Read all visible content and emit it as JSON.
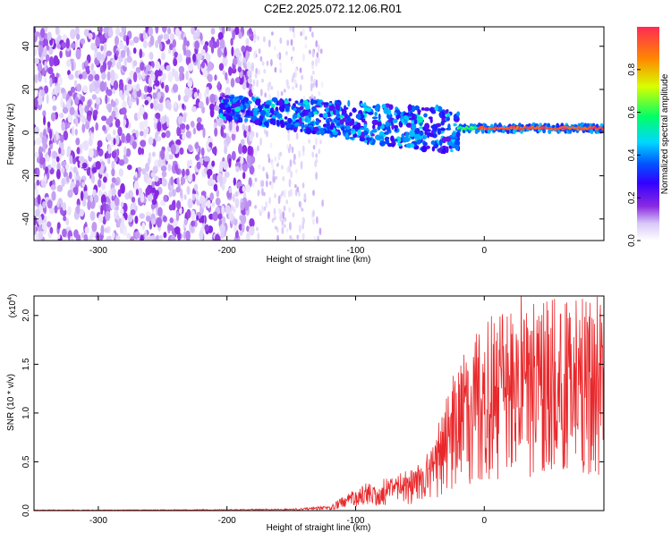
{
  "title": "C2E2.2025.072.12.06.R01",
  "colors": {
    "snr_line": "#e8282b",
    "background": "#ffffff",
    "colormap": [
      "#ffffff",
      "#d8c8f8",
      "#8a2be2",
      "#3300ff",
      "#0055ff",
      "#00d8ff",
      "#00ff66",
      "#d8ff00",
      "#ff8800",
      "#ff2a55"
    ]
  },
  "chart_data": [
    {
      "type": "heatmap",
      "title": "",
      "xlabel": "Height of straight line (km)",
      "ylabel": "Frequency (Hz)",
      "xlim": [
        -350,
        93
      ],
      "ylim": [
        -50,
        49
      ],
      "xticks": [
        -300,
        -200,
        -100,
        0
      ],
      "yticks": [
        -40,
        -20,
        0,
        20,
        40
      ],
      "colorbar": {
        "label": "Normalized spectral amplitude",
        "range": [
          0.0,
          1.0
        ],
        "ticks": [
          "0.0",
          "0.2",
          "0.4",
          "0.6",
          "0.8"
        ]
      },
      "regions": [
        {
          "x_range": [
            -350,
            -180
          ],
          "freq_range": [
            -50,
            49
          ],
          "amplitude": 0.1,
          "note": "dense violet noise"
        },
        {
          "x_range": [
            -180,
            -125
          ],
          "freq_range": [
            -50,
            49
          ],
          "amplitude": 0.05,
          "note": "sparse faint noise"
        },
        {
          "x_range": [
            -205,
            -20
          ],
          "freq_center": [
            12,
            0
          ],
          "amplitude": 0.35,
          "note": "blue-cyan band"
        },
        {
          "x_range": [
            -20,
            93
          ],
          "freq_center": [
            2,
            2
          ],
          "amplitude": 0.95,
          "note": "red-green narrow band"
        }
      ]
    },
    {
      "type": "line",
      "title": "",
      "xlabel": "Height of straight line (km)",
      "ylabel": "SNR (10 * v/v)",
      "y_multiplier_label": "(x10",
      "y_multiplier_exp": "4",
      "xlim": [
        -350,
        93
      ],
      "ylim": [
        0,
        2.2
      ],
      "xticks": [
        -300,
        -200,
        -100,
        0
      ],
      "yticks": [
        "0.0",
        "0.5",
        "1.0",
        "1.5",
        "2.0"
      ],
      "series": [
        {
          "x": [
            -350,
            -300,
            -250,
            -200,
            -150,
            -120,
            -100,
            -90,
            -80,
            -70,
            -60,
            -50,
            -40,
            -30,
            -20,
            -10,
            0,
            10,
            20,
            30,
            40,
            50,
            60,
            70,
            80,
            93
          ],
          "values": [
            0.005,
            0.005,
            0.006,
            0.008,
            0.012,
            0.03,
            0.14,
            0.18,
            0.2,
            0.22,
            0.25,
            0.3,
            0.42,
            0.7,
            0.95,
            1.1,
            1.2,
            1.25,
            1.3,
            1.4,
            1.35,
            1.4,
            1.3,
            1.3,
            1.35,
            1.4
          ]
        }
      ]
    }
  ]
}
